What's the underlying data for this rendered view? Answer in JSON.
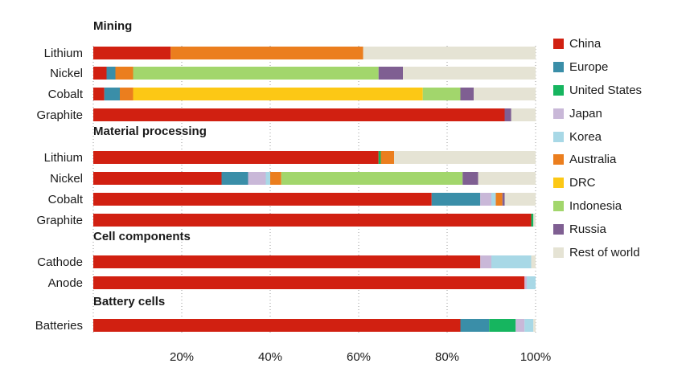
{
  "chart_data": {
    "type": "bar",
    "orientation": "horizontal",
    "stacked": true,
    "xlim": [
      0,
      100
    ],
    "x_ticks": [
      20,
      40,
      60,
      80,
      100
    ],
    "x_tick_labels": [
      "20%",
      "40%",
      "60%",
      "80%",
      "100%"
    ],
    "series": [
      {
        "name": "China",
        "color": "#D12011"
      },
      {
        "name": "Europe",
        "color": "#3A8EA8"
      },
      {
        "name": "United States",
        "color": "#16B55F"
      },
      {
        "name": "Japan",
        "color": "#C9B8D8"
      },
      {
        "name": "Korea",
        "color": "#A8D8E6"
      },
      {
        "name": "Australia",
        "color": "#EB7E1E"
      },
      {
        "name": "DRC",
        "color": "#FCC815"
      },
      {
        "name": "Indonesia",
        "color": "#A2D66C"
      },
      {
        "name": "Russia",
        "color": "#7F5F92"
      },
      {
        "name": "Rest of world",
        "color": "#E5E3D4"
      }
    ],
    "groups": [
      {
        "title": "Mining",
        "rows": [
          {
            "label": "Lithium",
            "values": {
              "China": 17.5,
              "Europe": 0,
              "United States": 0,
              "Japan": 0,
              "Korea": 0,
              "Australia": 43.5,
              "DRC": 0,
              "Indonesia": 0,
              "Russia": 0,
              "Rest of world": 39
            }
          },
          {
            "label": "Nickel",
            "values": {
              "China": 3,
              "Europe": 2,
              "United States": 0,
              "Japan": 0,
              "Korea": 0,
              "Australia": 4,
              "DRC": 0,
              "Indonesia": 55.5,
              "Russia": 5.5,
              "Rest of world": 30
            }
          },
          {
            "label": "Cobalt",
            "values": {
              "China": 2.5,
              "Europe": 3.5,
              "United States": 0,
              "Japan": 0,
              "Korea": 0,
              "Australia": 3,
              "DRC": 65.5,
              "Indonesia": 8.5,
              "Russia": 3,
              "Rest of world": 14
            }
          },
          {
            "label": "Graphite",
            "values": {
              "China": 93,
              "Europe": 0,
              "United States": 0,
              "Japan": 0,
              "Korea": 0,
              "Australia": 0,
              "DRC": 0,
              "Indonesia": 0,
              "Russia": 1.5,
              "Rest of world": 5.5
            }
          }
        ]
      },
      {
        "title": "Material processing",
        "rows": [
          {
            "label": "Lithium",
            "values": {
              "China": 64.5,
              "Europe": 0,
              "United States": 0.5,
              "Japan": 0,
              "Korea": 0,
              "Australia": 3,
              "DRC": 0,
              "Indonesia": 0,
              "Russia": 0,
              "Rest of world": 32
            }
          },
          {
            "label": "Nickel",
            "values": {
              "China": 29,
              "Europe": 6,
              "United States": 0,
              "Japan": 4,
              "Korea": 1,
              "Australia": 2.5,
              "DRC": 0,
              "Indonesia": 41,
              "Russia": 3.5,
              "Rest of world": 13
            }
          },
          {
            "label": "Cobalt",
            "values": {
              "China": 76.5,
              "Europe": 11,
              "United States": 0,
              "Japan": 2.5,
              "Korea": 1,
              "Australia": 1.5,
              "DRC": 0,
              "Indonesia": 0,
              "Russia": 0.5,
              "Rest of world": 7
            }
          },
          {
            "label": "Graphite",
            "values": {
              "China": 99,
              "Europe": 0,
              "United States": 0.5,
              "Japan": 0,
              "Korea": 0,
              "Australia": 0,
              "DRC": 0,
              "Indonesia": 0,
              "Russia": 0,
              "Rest of world": 0.5
            }
          }
        ]
      },
      {
        "title": "Cell components",
        "rows": [
          {
            "label": "Cathode",
            "values": {
              "China": 87.5,
              "Europe": 0,
              "United States": 0,
              "Japan": 2.5,
              "Korea": 9,
              "Australia": 0,
              "DRC": 0,
              "Indonesia": 0,
              "Russia": 0,
              "Rest of world": 1
            }
          },
          {
            "label": "Anode",
            "values": {
              "China": 97.5,
              "Europe": 0,
              "United States": 0,
              "Japan": 0.5,
              "Korea": 2,
              "Australia": 0,
              "DRC": 0,
              "Indonesia": 0,
              "Russia": 0,
              "Rest of world": 0
            }
          }
        ]
      },
      {
        "title": "Battery cells",
        "rows": [
          {
            "label": "Batteries",
            "values": {
              "China": 83,
              "Europe": 6.5,
              "United States": 6,
              "Japan": 2,
              "Korea": 2,
              "Australia": 0,
              "DRC": 0,
              "Indonesia": 0,
              "Russia": 0,
              "Rest of world": 0.5
            }
          }
        ]
      }
    ]
  }
}
